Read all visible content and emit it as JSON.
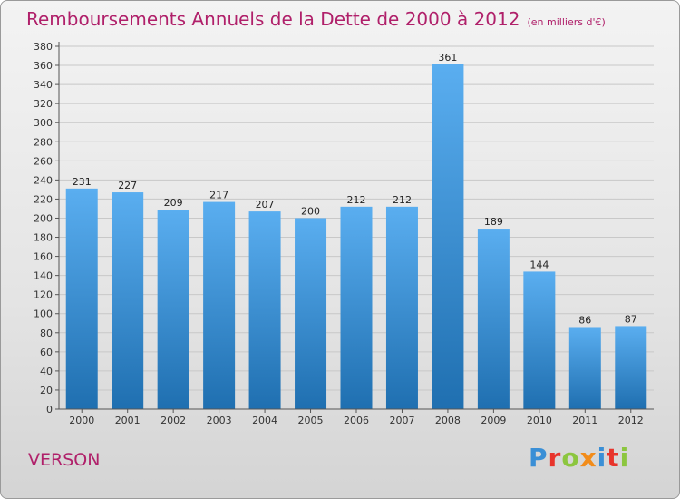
{
  "title": "Remboursements Annuels de la Dette de 2000 à 2012",
  "unit": "(en milliers d'€)",
  "place": "VERSON",
  "logo": {
    "text": "Proxiti",
    "letter_colors": [
      "#3a8fd6",
      "#e8342b",
      "#8cc63f",
      "#f28c1a",
      "#3a8fd6",
      "#e8342b",
      "#8cc63f"
    ]
  },
  "colors": {
    "bar_top": "#5aaef0",
    "bar_bottom": "#1f6fb0",
    "title": "#b0206a"
  },
  "chart_data": {
    "type": "bar",
    "categories": [
      "2000",
      "2001",
      "2002",
      "2003",
      "2004",
      "2005",
      "2006",
      "2007",
      "2008",
      "2009",
      "2010",
      "2011",
      "2012"
    ],
    "values": [
      231,
      227,
      209,
      217,
      207,
      200,
      212,
      212,
      361,
      189,
      144,
      86,
      87
    ],
    "data_labels": [
      "231",
      "227",
      "209",
      "217",
      "207",
      "200",
      "212",
      "212",
      "361",
      "189",
      "144",
      "86",
      "87"
    ],
    "y_ticks": [
      "0",
      "20",
      "40",
      "60",
      "80",
      "100",
      "120",
      "140",
      "160",
      "180",
      "200",
      "220",
      "240",
      "260",
      "280",
      "300",
      "320",
      "340",
      "360",
      "380"
    ],
    "ylim": [
      0,
      380
    ],
    "grid": true,
    "legend": "none"
  }
}
